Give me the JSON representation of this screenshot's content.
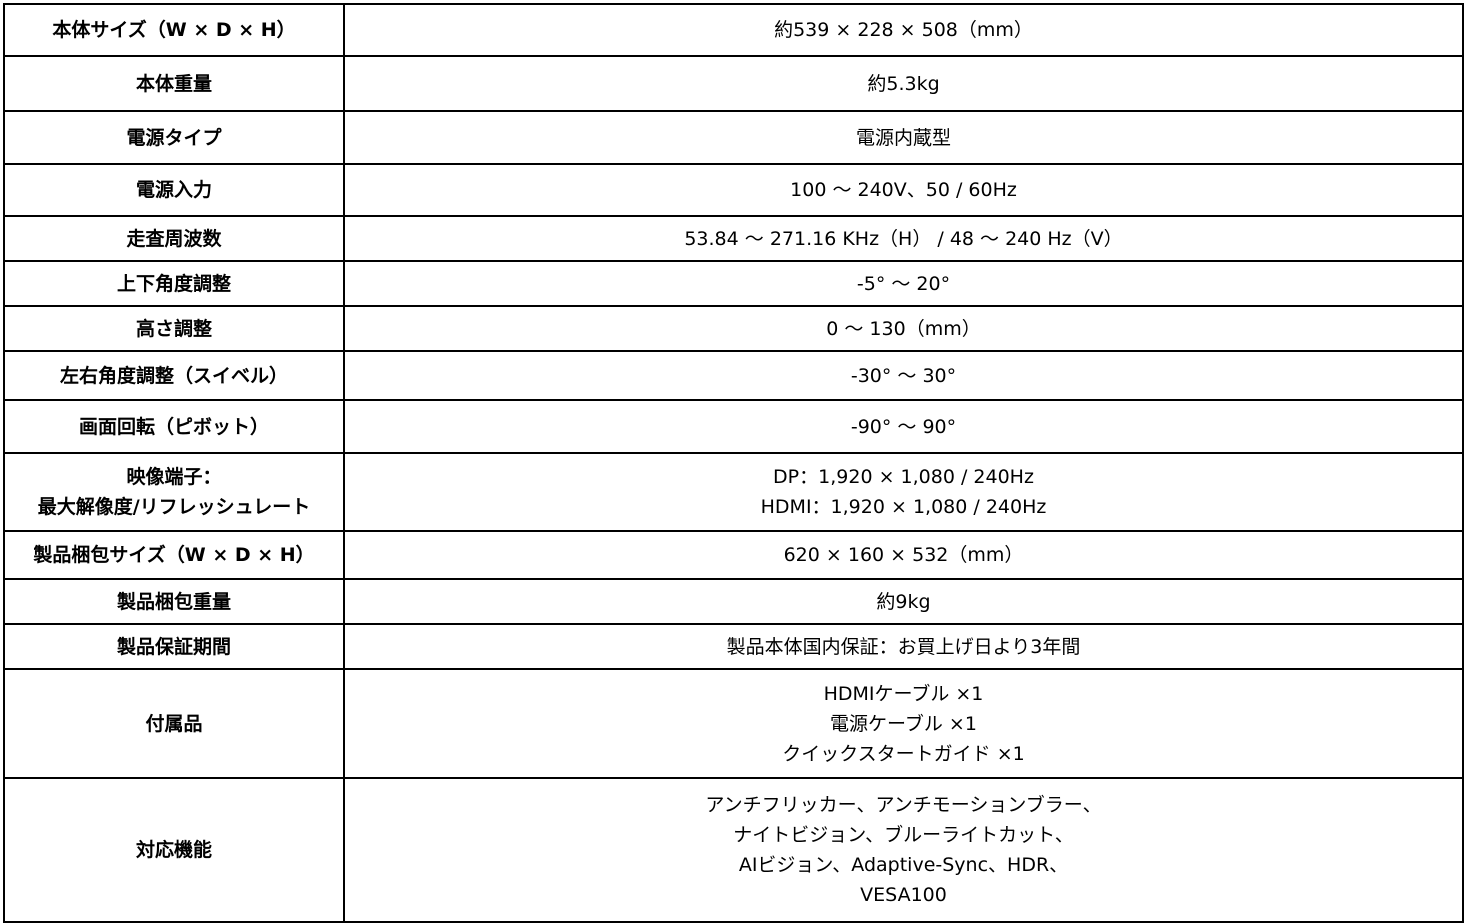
{
  "spec_table": {
    "rows": [
      {
        "label": [
          "本体サイズ（W × D × H）"
        ],
        "value": [
          "約539 × 228 × 508（mm）"
        ]
      },
      {
        "label": [
          "本体重量"
        ],
        "value": [
          "約5.3kg"
        ]
      },
      {
        "label": [
          "電源タイプ"
        ],
        "value": [
          "電源内蔵型"
        ]
      },
      {
        "label": [
          "電源入力"
        ],
        "value": [
          "100 ～ 240V、50 / 60Hz"
        ]
      },
      {
        "label": [
          "走査周波数"
        ],
        "value": [
          "53.84 ～ 271.16 KHz（H） / 48 ～ 240 Hz（V）"
        ]
      },
      {
        "label": [
          "上下角度調整"
        ],
        "value": [
          "-5° ～ 20°"
        ]
      },
      {
        "label": [
          "高さ調整"
        ],
        "value": [
          "0 ～ 130（mm）"
        ]
      },
      {
        "label": [
          "左右角度調整（スイベル）"
        ],
        "value": [
          "-30° ～ 30°"
        ]
      },
      {
        "label": [
          "画面回転（ピボット）"
        ],
        "value": [
          "-90° ～ 90°"
        ]
      },
      {
        "label": [
          "映像端子：",
          "最大解像度/リフレッシュレート"
        ],
        "value": [
          "DP：1,920 × 1,080 / 240Hz",
          "HDMI：1,920 × 1,080 / 240Hz"
        ]
      },
      {
        "label": [
          "製品梱包サイズ（W × D × H）"
        ],
        "value": [
          "620 × 160 × 532（mm）"
        ]
      },
      {
        "label": [
          "製品梱包重量"
        ],
        "value": [
          "約9kg"
        ]
      },
      {
        "label": [
          "製品保証期間"
        ],
        "value": [
          "製品本体国内保証：お買上げ日より3年間"
        ]
      },
      {
        "label": [
          "付属品"
        ],
        "value": [
          "HDMIケーブル ×1",
          "電源ケーブル ×1",
          "クイックスタートガイド ×1"
        ]
      },
      {
        "label": [
          "対応機能"
        ],
        "value": [
          "アンチフリッカー、アンチモーションブラー、",
          "ナイトビジョン、ブルーライトカット、",
          "AIビジョン、Adaptive-Sync、HDR、",
          "VESA100"
        ]
      }
    ]
  }
}
